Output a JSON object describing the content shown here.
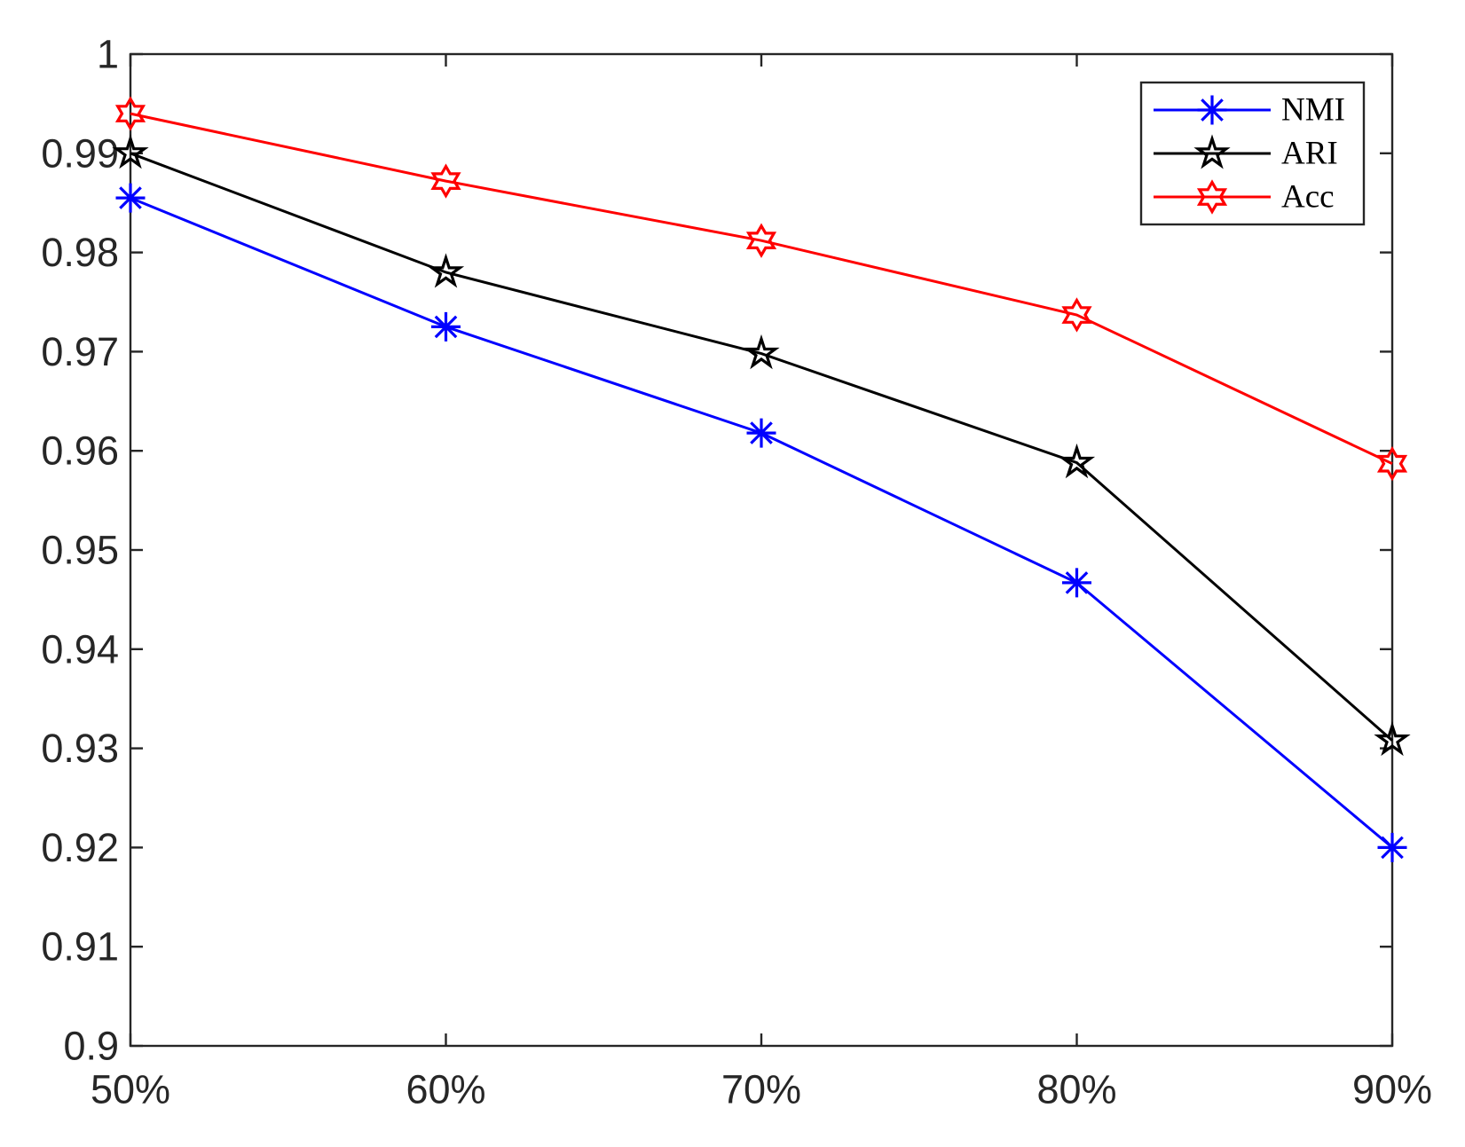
{
  "figure": {
    "background_color": "#ffffff",
    "axis_color": "#262626",
    "tick_label_color": "#262626",
    "legend_text_color": "#000000"
  },
  "chart_data": {
    "type": "line",
    "title": "",
    "xlabel": "",
    "ylabel": "",
    "grid": false,
    "categories": [
      "50%",
      "60%",
      "70%",
      "80%",
      "90%"
    ],
    "series": [
      {
        "name": "NMI",
        "color": "#0000ff",
        "marker": "asterisk",
        "values": [
          0.9855,
          0.9725,
          0.9618,
          0.9467,
          0.92
        ]
      },
      {
        "name": "ARI",
        "color": "#000000",
        "marker": "pentagram",
        "values": [
          0.99,
          0.978,
          0.9698,
          0.9588,
          0.9308
        ]
      },
      {
        "name": "Acc",
        "color": "#ff0000",
        "marker": "hexagram",
        "values": [
          0.994,
          0.9872,
          0.9812,
          0.9737,
          0.9587
        ]
      }
    ],
    "ylim": [
      0.9,
      1.0
    ],
    "yticks": [
      0.9,
      0.91,
      0.92,
      0.93,
      0.94,
      0.95,
      0.96,
      0.97,
      0.98,
      0.99,
      1.0
    ],
    "ytick_labels": [
      "0.9",
      "0.91",
      "0.92",
      "0.93",
      "0.94",
      "0.95",
      "0.96",
      "0.97",
      "0.98",
      "0.99",
      "1"
    ],
    "xtick_labels": [
      "50%",
      "60%",
      "70%",
      "80%",
      "90%"
    ],
    "legend": {
      "position": "top-right",
      "entries": [
        "NMI",
        "ARI",
        "Acc"
      ]
    }
  }
}
